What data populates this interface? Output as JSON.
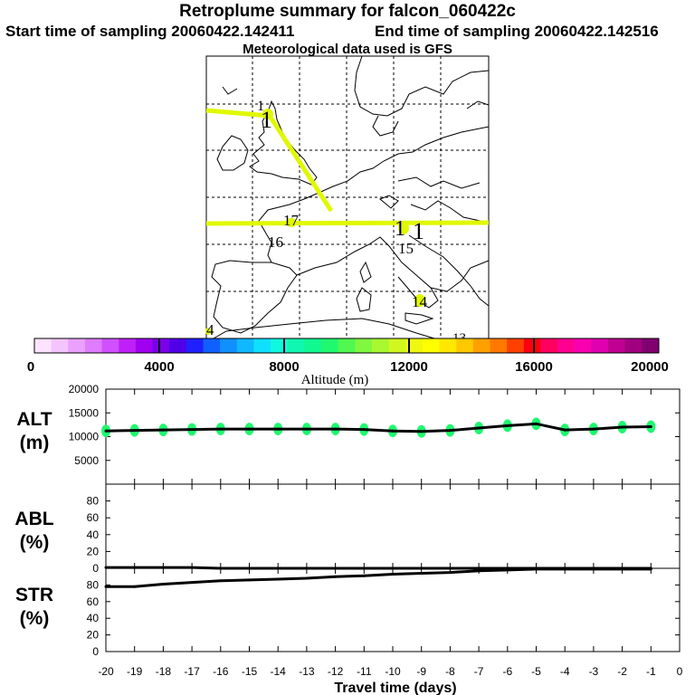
{
  "header": {
    "title": "Retroplume summary for falcon_060422c",
    "start": "Start time of sampling 20060422.142411",
    "end": "End time of sampling 20060422.142516",
    "met": "Meteorological data used is GFS"
  },
  "map": {
    "labels": [
      {
        "text": "1",
        "day": "1"
      },
      {
        "text": "1",
        "day": "1"
      },
      {
        "text": "17",
        "day": "17"
      },
      {
        "text": "16",
        "day": "16"
      },
      {
        "text": "1",
        "day": "1"
      },
      {
        "text": "1",
        "day": "1"
      },
      {
        "text": "15",
        "day": "15"
      },
      {
        "text": "14",
        "day": "14"
      },
      {
        "text": "4",
        "day": "4"
      },
      {
        "text": "13",
        "day": "13"
      }
    ]
  },
  "colorbar": {
    "title": "Altitude (m)",
    "ticks": [
      "0",
      "4000",
      "8000",
      "12000",
      "16000",
      "20000"
    ],
    "colors": [
      "#fde3ff",
      "#f4c4ff",
      "#eba0ff",
      "#df7cff",
      "#d050ff",
      "#c020f8",
      "#a000f0",
      "#7a00e8",
      "#5000e8",
      "#2020ff",
      "#1060ff",
      "#1090ff",
      "#10b8ff",
      "#10e0ff",
      "#10f8e0",
      "#10f8b0",
      "#10f890",
      "#20f870",
      "#50f850",
      "#80f840",
      "#a8f830",
      "#d0f820",
      "#f0f810",
      "#ffff00",
      "#ffe800",
      "#ffc800",
      "#ffa000",
      "#ff7800",
      "#ff4000",
      "#ff0010",
      "#ff0060",
      "#ff0090",
      "#f800b0",
      "#e000b0",
      "#c00090",
      "#a00080",
      "#800070"
    ]
  },
  "chart_data": {
    "type": "line",
    "xlabel": "Travel time (days)",
    "x_ticks": [
      "-20",
      "-19",
      "-18",
      "-17",
      "-16",
      "-15",
      "-14",
      "-13",
      "-12",
      "-11",
      "-10",
      "-9",
      "-8",
      "-7",
      "-6",
      "-5",
      "-4",
      "-3",
      "-2",
      "-1",
      "0"
    ],
    "x": [
      -20,
      -19,
      -18,
      -17,
      -16,
      -15,
      -14,
      -13,
      -12,
      -11,
      -10,
      -9,
      -8,
      -7,
      -6,
      -5,
      -4,
      -3,
      -2,
      -1
    ],
    "alt": {
      "label": "ALT",
      "unit": "(m)",
      "ylim": [
        0,
        20000
      ],
      "yticks": [
        "20000",
        "15000",
        "10000",
        "5000"
      ],
      "values": [
        11200,
        11300,
        11400,
        11500,
        11600,
        11600,
        11600,
        11600,
        11600,
        11500,
        11200,
        11100,
        11300,
        11800,
        12300,
        12700,
        11400,
        11600,
        12000,
        12100
      ]
    },
    "abl": {
      "label": "ABL",
      "unit": "(%)",
      "ylim": [
        0,
        100
      ],
      "yticks": [
        "80",
        "60",
        "40",
        "20",
        "0"
      ],
      "values": [
        1,
        1,
        1,
        1,
        0,
        0,
        0,
        0,
        0,
        0,
        0,
        0,
        0,
        0,
        0,
        0,
        0,
        0,
        0,
        0
      ]
    },
    "str": {
      "label": "STR",
      "unit": "(%)",
      "ylim": [
        0,
        100
      ],
      "yticks": [
        "80",
        "60",
        "40",
        "20",
        "0"
      ],
      "values": [
        78,
        78,
        81,
        83,
        85,
        86,
        87,
        88,
        90,
        91,
        93,
        94,
        95,
        97,
        98,
        99,
        99,
        99,
        99,
        99
      ]
    }
  }
}
